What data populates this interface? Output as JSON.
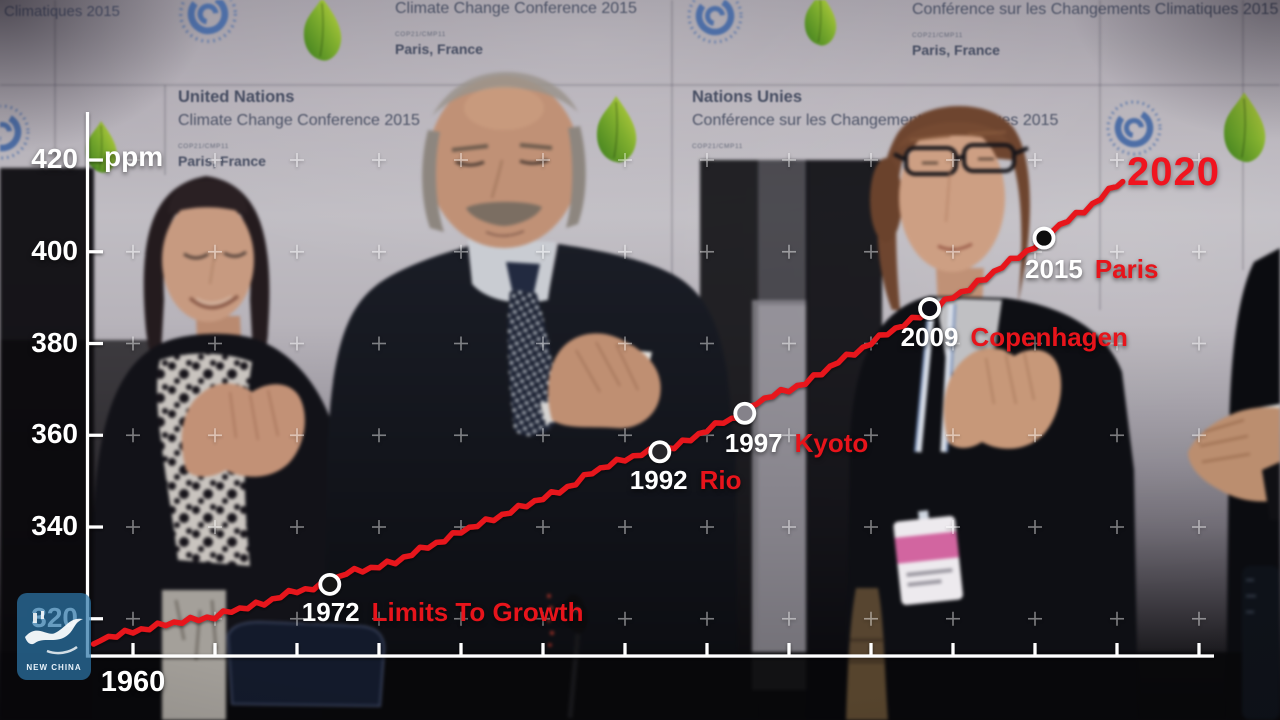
{
  "banner": {
    "top_left_partial": "Climatiques 2015",
    "en_top": {
      "line2": "Climate Change Conference 2015",
      "cop": "COP21/CMP11",
      "city": "Paris, France"
    },
    "fr_top": {
      "line1": "Conférence sur les Changements Climatiques 2015",
      "cop": "COP21/CMP11",
      "city": "Paris, France"
    },
    "en_mid": {
      "line1": "United Nations",
      "line2": "Climate Change Conference 2015",
      "cop": "COP21/CMP11",
      "city": "Paris, France"
    },
    "fr_mid": {
      "line1": "Nations Unies",
      "line2": "Conférence sur les Changements Climatiques 2015",
      "cop": "COP21/CMP11"
    }
  },
  "chart_data": {
    "type": "line",
    "unit": "ppm",
    "ylabel": "ppm",
    "ylim": [
      320,
      420
    ],
    "yticks": [
      420,
      400,
      380,
      360,
      340,
      320
    ],
    "xtick_label": "1960",
    "xlim_years": [
      1960,
      2025
    ],
    "grid": "small cross marks at 5-year / 20-ppm intersections",
    "end_label": "2020",
    "series": [
      {
        "name": "Atmospheric CO2 concentration (ppm)",
        "x_start_year": 1958,
        "x_step": 1,
        "values": [
          315.2,
          316.0,
          316.9,
          317.6,
          318.5,
          319.0,
          319.6,
          320.0,
          321.4,
          322.2,
          323.0,
          324.6,
          325.7,
          326.3,
          327.5,
          329.7,
          330.2,
          331.1,
          332.0,
          333.8,
          335.4,
          336.8,
          338.7,
          340.1,
          341.4,
          343.0,
          344.4,
          346.0,
          347.4,
          349.2,
          351.6,
          353.1,
          354.4,
          355.6,
          356.4,
          357.1,
          358.8,
          360.8,
          362.6,
          363.7,
          366.7,
          368.4,
          369.5,
          371.1,
          373.2,
          375.8,
          377.5,
          379.8,
          381.9,
          383.8,
          385.6,
          387.4,
          389.9,
          391.6,
          393.9,
          396.5,
          398.6,
          400.8,
          404.2,
          406.6,
          408.5,
          411.4,
          414.2
        ]
      }
    ],
    "events": [
      {
        "year": 1972,
        "name": "Limits To Growth",
        "value": 327.5
      },
      {
        "year": 1992,
        "name": "Rio",
        "value": 356.4
      },
      {
        "year": 1997,
        "name": "Kyoto",
        "value": 363.7
      },
      {
        "year": 2009,
        "name": "Copenhagen",
        "value": 387.4
      },
      {
        "year": 2015,
        "name": "Paris",
        "value": 400.8
      }
    ],
    "colors": {
      "line": "#e7141b",
      "event_year": "#ffffff",
      "event_name": "#e7141b",
      "end_label": "#f0141f",
      "axis": "#ffffff"
    }
  },
  "watermark": {
    "text": "NEW CHINA"
  }
}
